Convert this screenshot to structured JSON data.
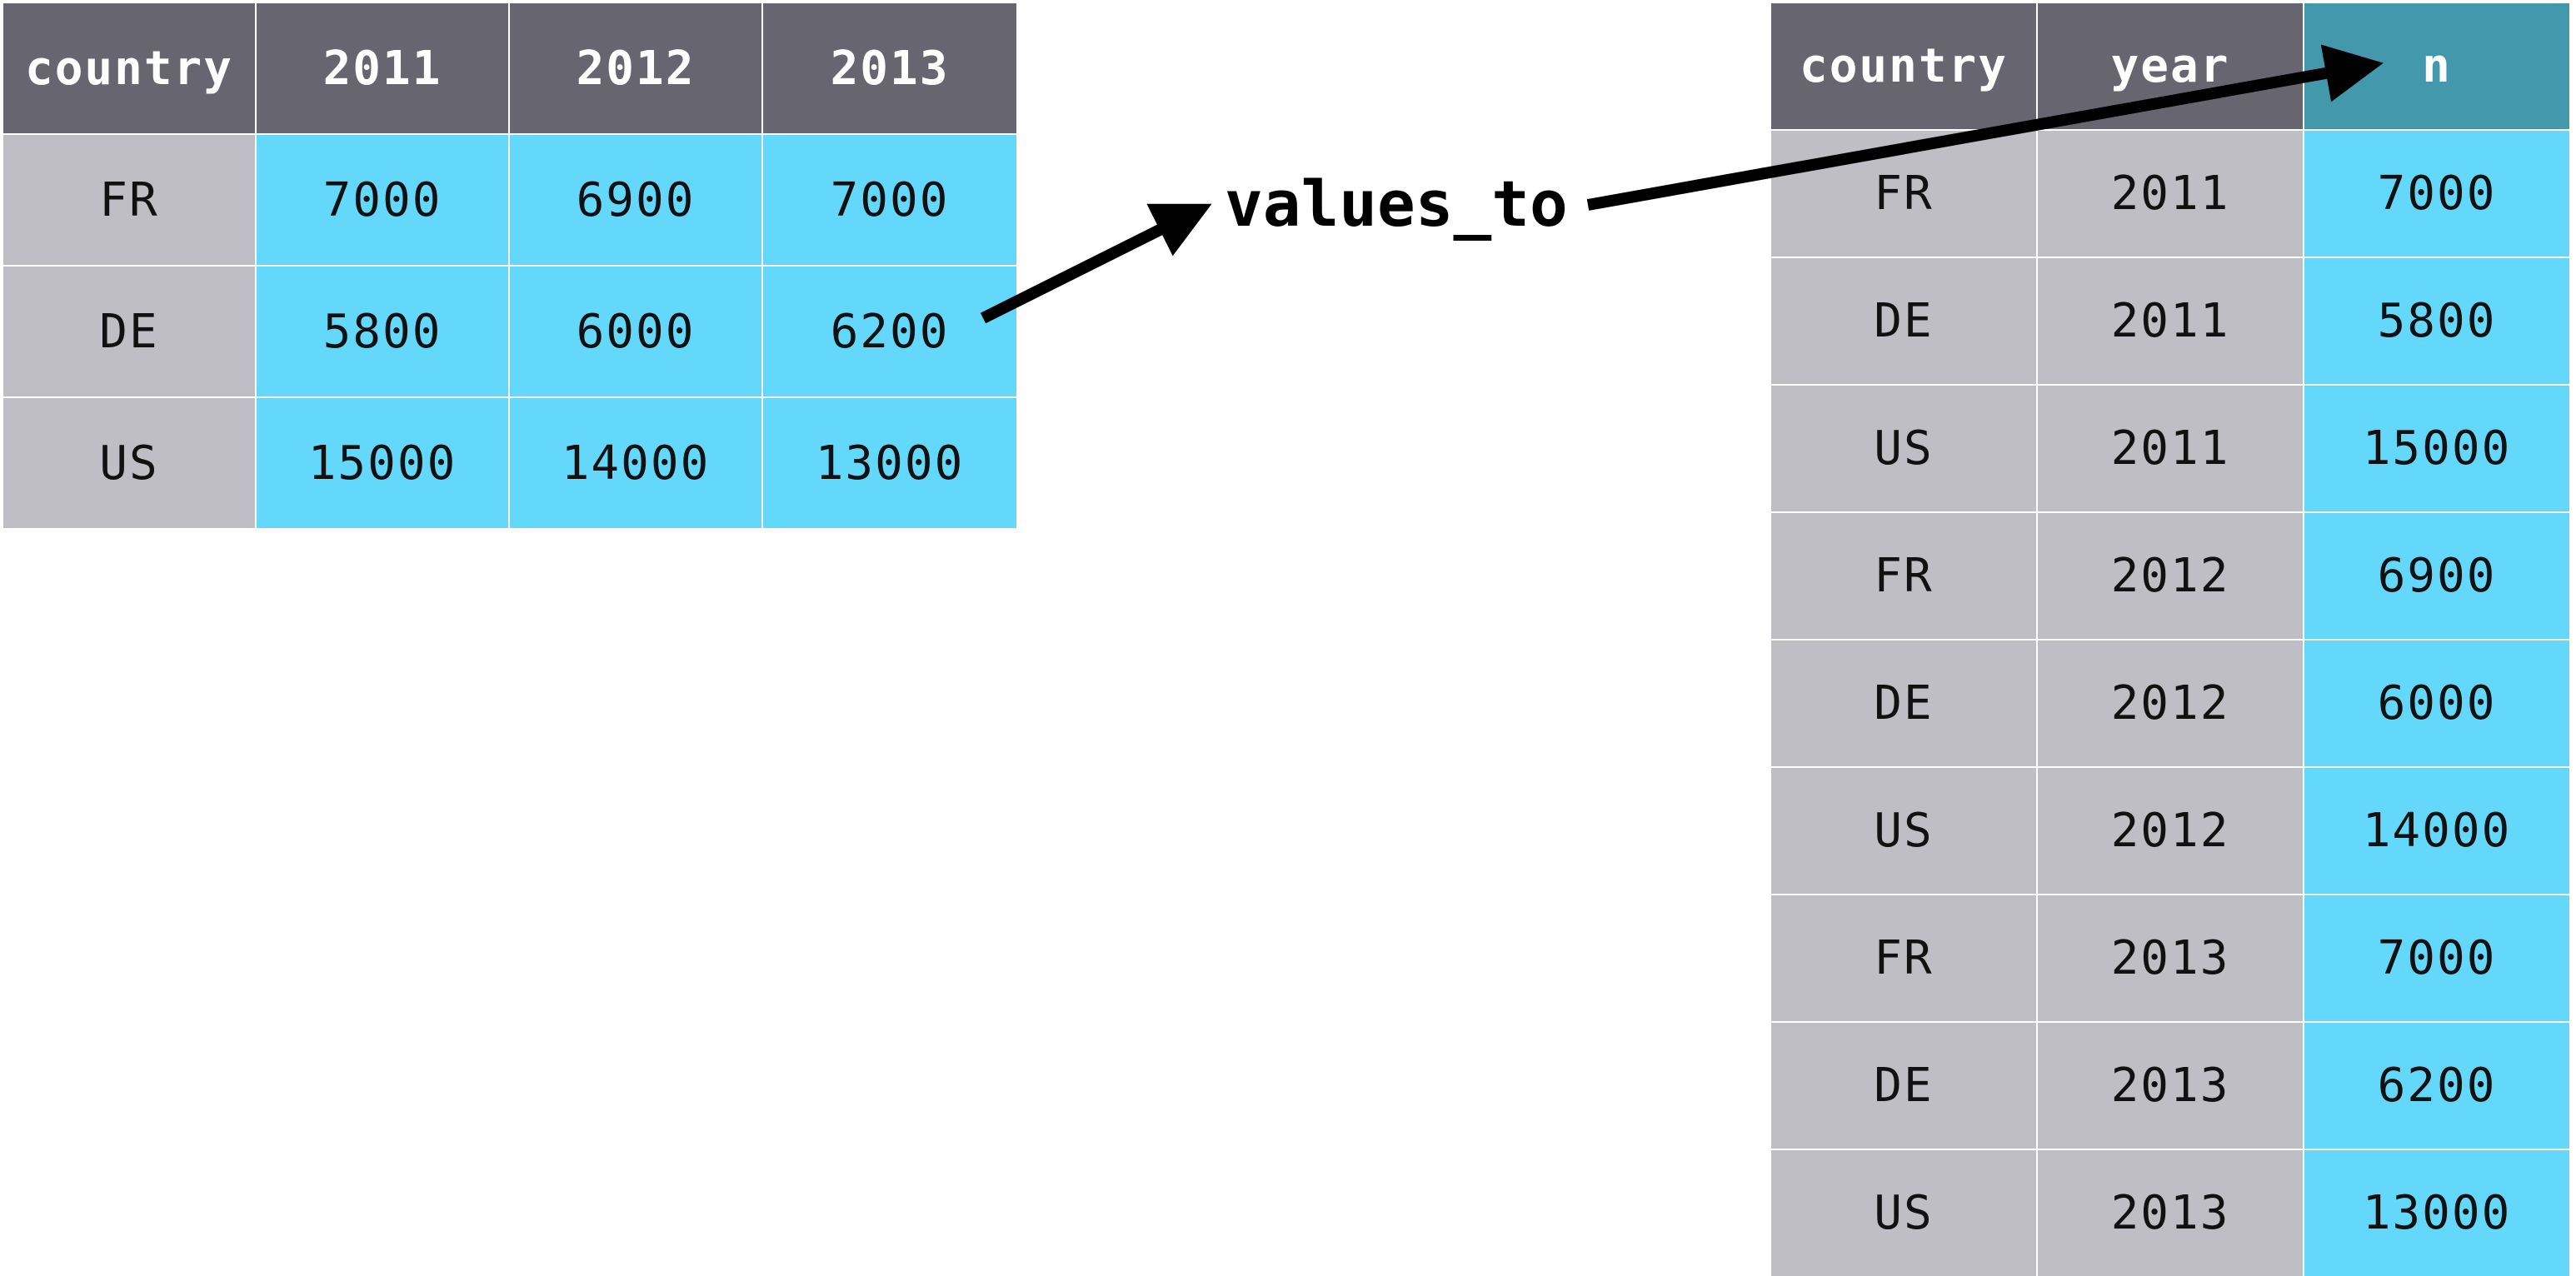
{
  "wide_table": {
    "headers": [
      "country",
      "2011",
      "2012",
      "2013"
    ],
    "rows": [
      [
        "FR",
        "7000",
        "6900",
        "7000"
      ],
      [
        "DE",
        "5800",
        "6000",
        "6200"
      ],
      [
        "US",
        "15000",
        "14000",
        "13000"
      ]
    ]
  },
  "label": "values_to",
  "long_table": {
    "headers": [
      "country",
      "year",
      "n"
    ],
    "rows": [
      [
        "FR",
        "2011",
        "7000"
      ],
      [
        "DE",
        "2011",
        "5800"
      ],
      [
        "US",
        "2011",
        "15000"
      ],
      [
        "FR",
        "2012",
        "6900"
      ],
      [
        "DE",
        "2012",
        "6000"
      ],
      [
        "US",
        "2012",
        "14000"
      ],
      [
        "FR",
        "2013",
        "7000"
      ],
      [
        "DE",
        "2013",
        "6200"
      ],
      [
        "US",
        "2013",
        "13000"
      ]
    ]
  },
  "colors": {
    "header": "#67656f",
    "header_highlight": "#4498ac",
    "key_cell": "#bfbec4",
    "value_cell": "#64d8fb",
    "arrow": "#000000"
  }
}
